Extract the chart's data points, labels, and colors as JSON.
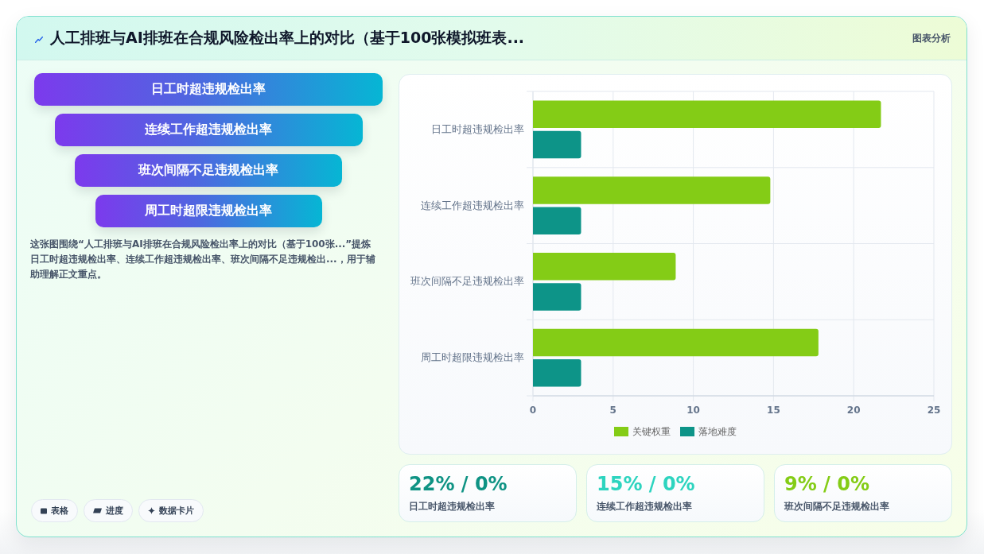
{
  "chart_data": [
    {
      "type": "other",
      "title": "人工排班与AI排班在合规风险检出率上的对比（基于100张模拟班表...",
      "annotations": [
        "图表分析"
      ]
    },
    {
      "type": "other",
      "categories": [
        "日工时超违规检出率",
        "连续工作超违规检出率",
        "班次间隔不足违规检出率",
        "周工时超限违规检出率"
      ],
      "annotations": [
        "这张图围绕“人工排班与AI排班在合规风险检出率上的对比（基于100张...”提炼日工时超违规检出率、连续工作超违规检出率、班次间隔不足违规检出...，用于辅助理解正文重点。",
        "表格",
        "进度",
        "数据卡片"
      ]
    },
    {
      "type": "bar",
      "orientation": "horizontal",
      "categories": [
        "日工时超违规检出率",
        "连续工作超违规检出率",
        "班次间隔不足违规检出率",
        "周工时超限违规检出率"
      ],
      "series": [
        {
          "name": "关键权重",
          "color": "#84cc16",
          "values": [
            21.7,
            14.8,
            8.9,
            17.8
          ]
        },
        {
          "name": "落地难度",
          "color": "#0d9488",
          "values": [
            3,
            3,
            3,
            3
          ]
        }
      ],
      "xlim": [
        0,
        25
      ],
      "xticks": [
        0,
        5,
        10,
        15,
        20,
        25
      ],
      "grid": true,
      "legend": "bottom"
    },
    {
      "type": "other",
      "categories": [
        "日工时超违规检出率",
        "连续工作超违规检出率",
        "班次间隔不足违规检出率"
      ],
      "annotations": [
        "22% / 0%",
        "15% / 0%",
        "9% / 0%"
      ]
    }
  ]
}
